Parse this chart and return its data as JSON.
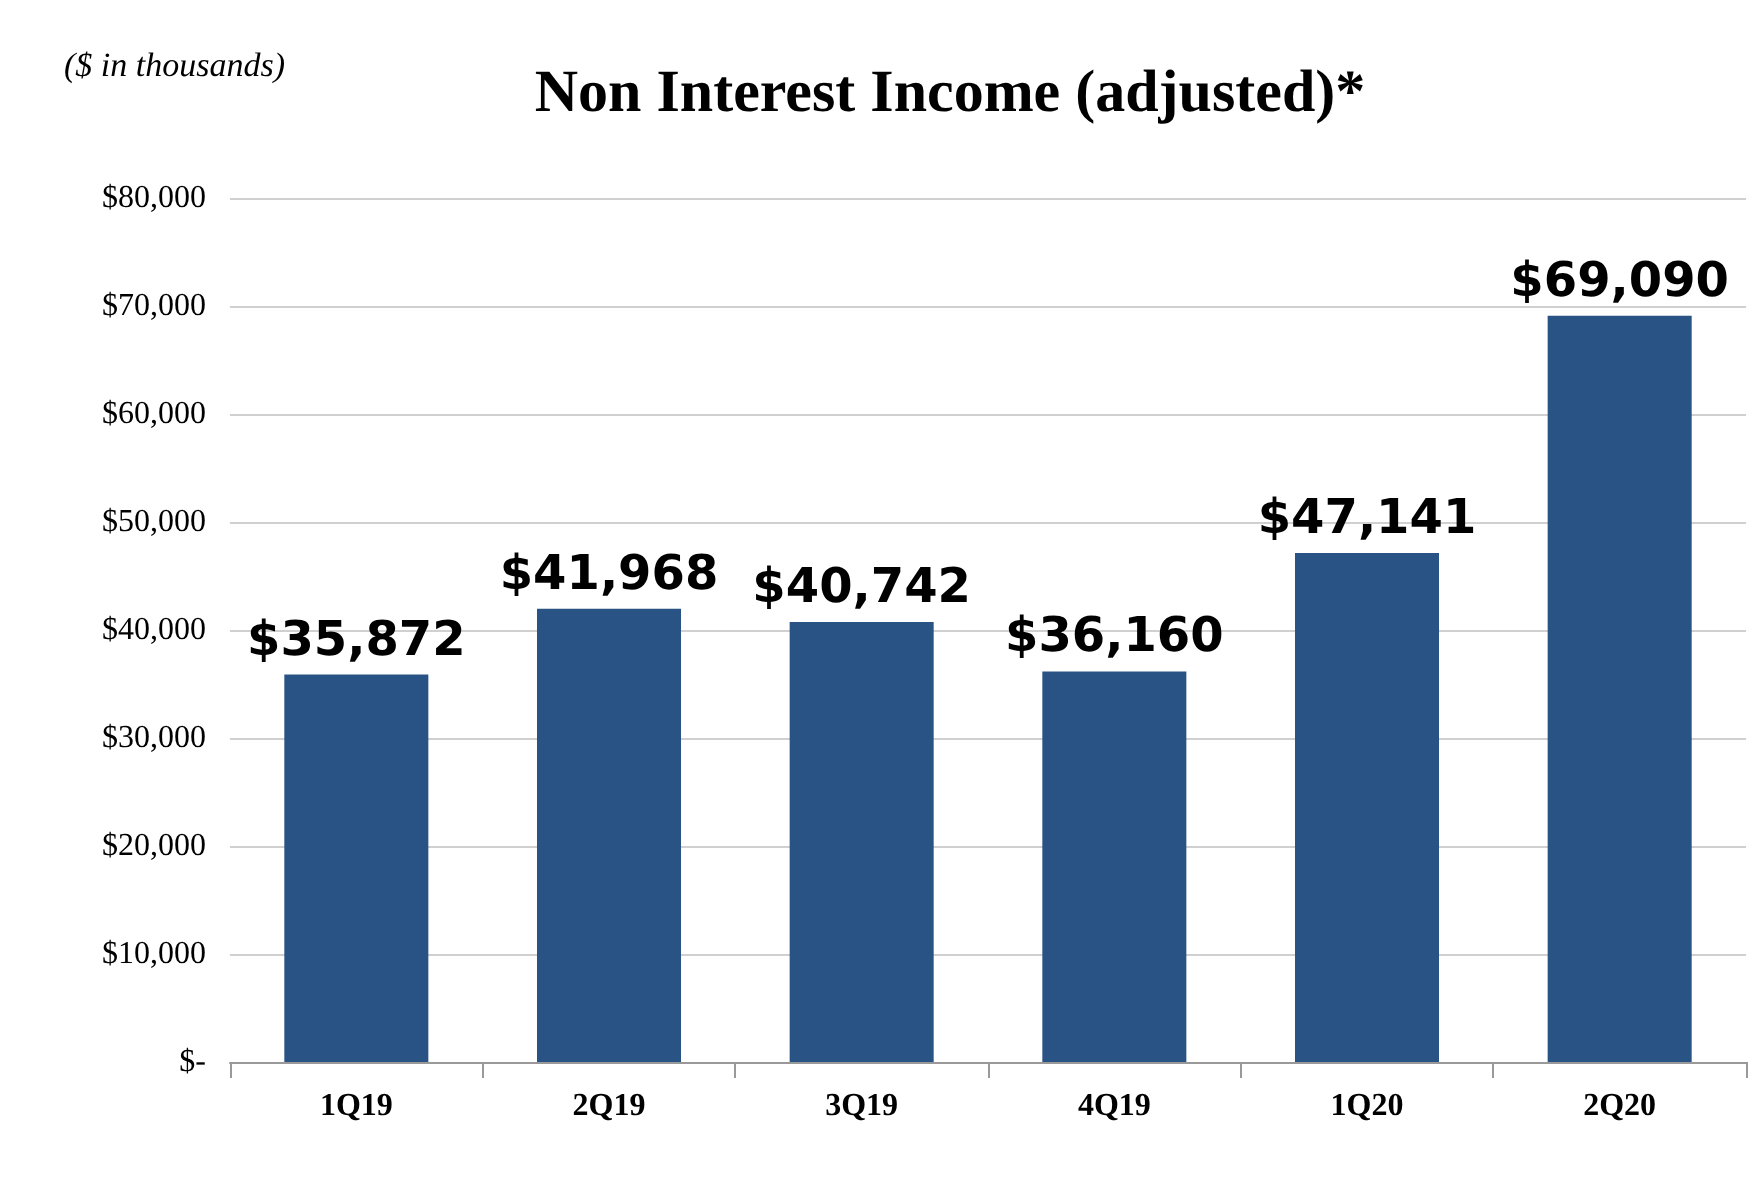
{
  "chart_data": {
    "type": "bar",
    "title": "Non Interest Income (adjusted)*",
    "annotations": [
      "($ in thousands)"
    ],
    "categories": [
      "1Q19",
      "2Q19",
      "3Q19",
      "4Q19",
      "1Q20",
      "2Q20"
    ],
    "values": [
      35872,
      41968,
      40742,
      36160,
      47141,
      69090
    ],
    "value_labels": [
      "$35,872",
      "$41,968",
      "$40,742",
      "$36,160",
      "$47,141",
      "$69,090"
    ],
    "color": "#285384",
    "ylim": [
      0,
      80000
    ],
    "yticks": [
      {
        "value": 0,
        "label": "$-"
      },
      {
        "value": 10000,
        "label": "$10,000"
      },
      {
        "value": 20000,
        "label": "$20,000"
      },
      {
        "value": 30000,
        "label": "$30,000"
      },
      {
        "value": 40000,
        "label": "$40,000"
      },
      {
        "value": 50000,
        "label": "$50,000"
      },
      {
        "value": 60000,
        "label": "$60,000"
      },
      {
        "value": 70000,
        "label": "$70,000"
      },
      {
        "value": 80000,
        "label": "$80,000"
      }
    ],
    "grid": "y"
  }
}
